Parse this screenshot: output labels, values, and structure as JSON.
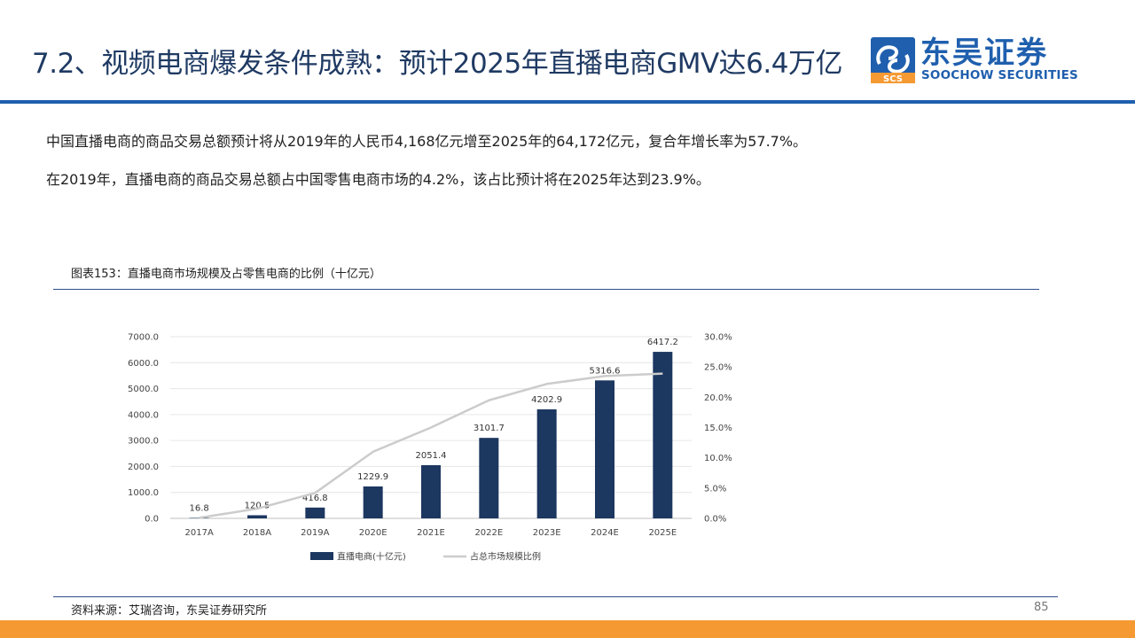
{
  "header": {
    "title": "7.2、视频电商爆发条件成熟：预计2025年直播电商GMV达6.4万亿",
    "logo_cn": "东吴证券",
    "logo_en": "SOOCHOW SECURITIES",
    "logo_mark_text": "SCS",
    "brand_color": "#1f5fae"
  },
  "body": {
    "paragraph1": "中国直播电商的商品交易总额预计将从2019年的人民币4,168亿元增至2025年的64,172亿元，复合年增长率为57.7%。",
    "paragraph2": "在2019年，直播电商的商品交易总额占中国零售电商市场的4.2%，该占比预计将在2025年达到23.9%。"
  },
  "figure": {
    "title": "图表153：直播电商市场规模及占零售电商的比例（十亿元）"
  },
  "chart_data": {
    "type": "bar",
    "categories": [
      "2017A",
      "2018A",
      "2019A",
      "2020E",
      "2021E",
      "2022E",
      "2023E",
      "2024E",
      "2025E"
    ],
    "series": [
      {
        "name": "直播电商(十亿元)",
        "type": "bar",
        "axis": "left",
        "color": "#1c3760",
        "values": [
          16.8,
          120.5,
          416.8,
          1229.9,
          2051.4,
          3101.7,
          4202.9,
          5316.6,
          6417.2
        ],
        "labels": [
          "16.8",
          "120.5",
          "416.8",
          "1229.9",
          "2051.4",
          "3101.7",
          "4202.9",
          "5316.6",
          "6417.2"
        ]
      },
      {
        "name": "占总市场规模比例",
        "type": "line",
        "axis": "right",
        "color": "#cccccc",
        "values": [
          0.1,
          1.6,
          4.2,
          11.0,
          15.0,
          19.5,
          22.2,
          23.5,
          23.9
        ]
      }
    ],
    "y_left": {
      "ylim": [
        0,
        7000
      ],
      "ticks": [
        0,
        1000,
        2000,
        3000,
        4000,
        5000,
        6000,
        7000
      ],
      "tick_labels": [
        "0.0",
        "1000.0",
        "2000.0",
        "3000.0",
        "4000.0",
        "5000.0",
        "6000.0",
        "7000.0"
      ]
    },
    "y_right": {
      "ylim": [
        0,
        30
      ],
      "ticks": [
        0,
        5,
        10,
        15,
        20,
        25,
        30
      ],
      "tick_labels": [
        "0.0%",
        "5.0%",
        "10.0%",
        "15.0%",
        "20.0%",
        "25.0%",
        "30.0%"
      ]
    },
    "grid": true,
    "legend_position": "bottom"
  },
  "footer": {
    "source": "资料来源：艾瑞咨询，东吴证券研究所",
    "page_number": "85",
    "accent_color": "#f59a32"
  }
}
